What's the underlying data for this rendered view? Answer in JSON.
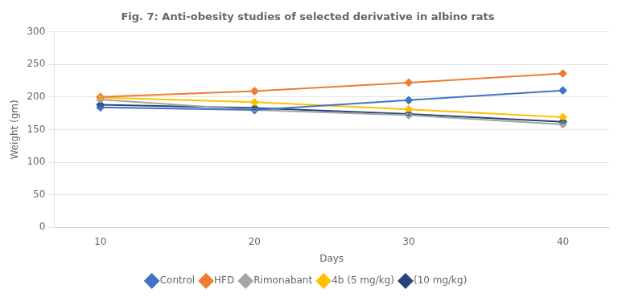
{
  "chart_data": {
    "type": "line",
    "title": "Fig. 7: Anti-obesity studies of selected derivative in albino rats",
    "x_label": "Days",
    "y_label": "Weight (gm)",
    "x": [
      10,
      20,
      30,
      40
    ],
    "series": [
      {
        "name": "Control",
        "color": "#4472C4",
        "values": [
          184,
          180,
          195,
          210
        ],
        "errors": [
          2,
          2,
          3,
          2
        ],
        "marker": "diamond"
      },
      {
        "name": "HFD",
        "color": "#ED7D31",
        "values": [
          200,
          209,
          222,
          236
        ],
        "errors": [
          2,
          3,
          2,
          2
        ],
        "marker": "diamond"
      },
      {
        "name": "Rimonabant",
        "color": "#A5A5A5",
        "values": [
          196,
          180,
          172,
          158
        ],
        "errors": [
          2,
          2,
          2,
          2
        ],
        "marker": "diamond"
      },
      {
        "name": "4b (5 mg/kg)",
        "color": "#FFC000",
        "values": [
          199,
          192,
          181,
          169
        ],
        "errors": [
          2,
          2,
          2,
          2
        ],
        "marker": "diamond"
      },
      {
        "name": "(10 mg/kg)",
        "color": "#264478",
        "values": [
          188,
          183,
          174,
          162
        ],
        "errors": [
          2,
          2,
          2,
          2
        ],
        "marker": "diamond"
      }
    ],
    "xlim": [
      7,
      43
    ],
    "xticks": [
      10,
      20,
      30,
      40
    ],
    "ylim": [
      0,
      300
    ],
    "yticks": [
      0,
      50,
      100,
      150,
      200,
      250,
      300
    ],
    "grid": "y",
    "legend": "bottom"
  }
}
